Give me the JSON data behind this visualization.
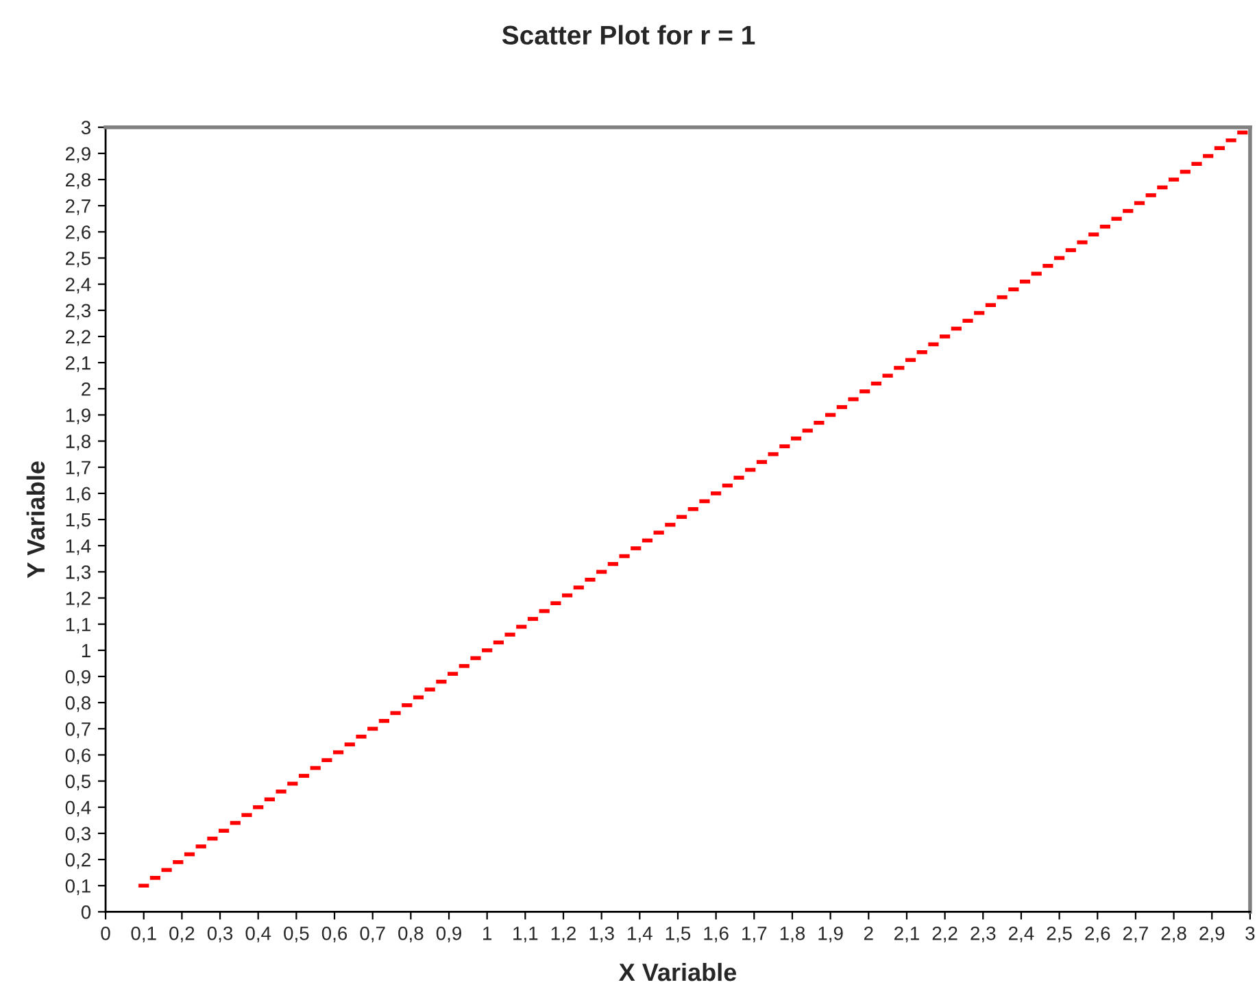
{
  "chart_data": {
    "type": "scatter",
    "title": "Scatter Plot for r = 1",
    "xlabel": "X Variable",
    "ylabel": "Y Variable",
    "x": [
      0.1,
      0.13,
      0.16,
      0.19,
      0.22,
      0.25,
      0.28,
      0.31,
      0.34,
      0.37,
      0.4,
      0.43,
      0.46,
      0.49,
      0.52,
      0.55,
      0.58,
      0.61,
      0.64,
      0.67,
      0.7,
      0.73,
      0.76,
      0.79,
      0.82,
      0.85,
      0.88,
      0.91,
      0.94,
      0.97,
      1,
      1.03,
      1.06,
      1.09,
      1.12,
      1.15,
      1.18,
      1.21,
      1.24,
      1.27,
      1.3,
      1.33,
      1.36,
      1.39,
      1.42,
      1.45,
      1.48,
      1.51,
      1.54,
      1.57,
      1.6,
      1.63,
      1.66,
      1.69,
      1.72,
      1.75,
      1.78,
      1.81,
      1.84,
      1.87,
      1.9,
      1.93,
      1.96,
      1.99,
      2.02,
      2.05,
      2.08,
      2.11,
      2.14,
      2.17,
      2.2,
      2.23,
      2.26,
      2.29,
      2.32,
      2.35,
      2.38,
      2.41,
      2.44,
      2.47,
      2.5,
      2.53,
      2.56,
      2.59,
      2.62,
      2.65,
      2.68,
      2.71,
      2.74,
      2.77,
      2.8,
      2.83,
      2.86,
      2.89,
      2.92,
      2.95,
      2.98
    ],
    "series": [
      {
        "color": "#ff0000",
        "values": [
          0.1,
          0.13,
          0.16,
          0.19,
          0.22,
          0.25,
          0.28,
          0.31,
          0.34,
          0.37,
          0.4,
          0.43,
          0.46,
          0.49,
          0.52,
          0.55,
          0.58,
          0.61,
          0.64,
          0.67,
          0.7,
          0.73,
          0.76,
          0.79,
          0.82,
          0.85,
          0.88,
          0.91,
          0.94,
          0.97,
          1,
          1.03,
          1.06,
          1.09,
          1.12,
          1.15,
          1.18,
          1.21,
          1.24,
          1.27,
          1.3,
          1.33,
          1.36,
          1.39,
          1.42,
          1.45,
          1.48,
          1.51,
          1.54,
          1.57,
          1.6,
          1.63,
          1.66,
          1.69,
          1.72,
          1.75,
          1.78,
          1.81,
          1.84,
          1.87,
          1.9,
          1.93,
          1.96,
          1.99,
          2.02,
          2.05,
          2.08,
          2.11,
          2.14,
          2.17,
          2.2,
          2.23,
          2.26,
          2.29,
          2.32,
          2.35,
          2.38,
          2.41,
          2.44,
          2.47,
          2.5,
          2.53,
          2.56,
          2.59,
          2.62,
          2.65,
          2.68,
          2.71,
          2.74,
          2.77,
          2.8,
          2.83,
          2.86,
          2.89,
          2.92,
          2.95,
          2.98
        ]
      }
    ],
    "xlim": [
      0,
      3
    ],
    "ylim": [
      0,
      3
    ],
    "xticks": [
      0,
      {
        "value": 0.1,
        "label": "0,1"
      },
      {
        "value": 0.2,
        "label": "0,2"
      },
      {
        "value": 0.3,
        "label": "0,3"
      },
      {
        "value": 0.4,
        "label": "0,4"
      },
      {
        "value": 0.5,
        "label": "0,5"
      },
      {
        "value": 0.6,
        "label": "0,6"
      },
      {
        "value": 0.7,
        "label": "0,7"
      },
      {
        "value": 0.8,
        "label": "0,8"
      },
      {
        "value": 0.9,
        "label": "0,9"
      },
      1,
      {
        "value": 1.1,
        "label": "1,1"
      },
      {
        "value": 1.2,
        "label": "1,2"
      },
      {
        "value": 1.3,
        "label": "1,3"
      },
      {
        "value": 1.4,
        "label": "1,4"
      },
      {
        "value": 1.5,
        "label": "1,5"
      },
      {
        "value": 1.6,
        "label": "1,6"
      },
      {
        "value": 1.7,
        "label": "1,7"
      },
      {
        "value": 1.8,
        "label": "1,8"
      },
      {
        "value": 1.9,
        "label": "1,9"
      },
      2,
      {
        "value": 2.1,
        "label": "2,1"
      },
      {
        "value": 2.2,
        "label": "2,2"
      },
      {
        "value": 2.3,
        "label": "2,3"
      },
      {
        "value": 2.4,
        "label": "2,4"
      },
      {
        "value": 2.5,
        "label": "2,5"
      },
      {
        "value": 2.6,
        "label": "2,6"
      },
      {
        "value": 2.7,
        "label": "2,7"
      },
      {
        "value": 2.8,
        "label": "2,8"
      },
      {
        "value": 2.9,
        "label": "2,9"
      },
      3
    ],
    "yticks": [
      0,
      {
        "value": 0.1,
        "label": "0,1"
      },
      {
        "value": 0.2,
        "label": "0,2"
      },
      {
        "value": 0.3,
        "label": "0,3"
      },
      {
        "value": 0.4,
        "label": "0,4"
      },
      {
        "value": 0.5,
        "label": "0,5"
      },
      {
        "value": 0.6,
        "label": "0,6"
      },
      {
        "value": 0.7,
        "label": "0,7"
      },
      {
        "value": 0.8,
        "label": "0,8"
      },
      {
        "value": 0.9,
        "label": "0,9"
      },
      1,
      {
        "value": 1.1,
        "label": "1,1"
      },
      {
        "value": 1.2,
        "label": "1,2"
      },
      {
        "value": 1.3,
        "label": "1,3"
      },
      {
        "value": 1.4,
        "label": "1,4"
      },
      {
        "value": 1.5,
        "label": "1,5"
      },
      {
        "value": 1.6,
        "label": "1,6"
      },
      {
        "value": 1.7,
        "label": "1,7"
      },
      {
        "value": 1.8,
        "label": "1,8"
      },
      {
        "value": 1.9,
        "label": "1,9"
      },
      2,
      {
        "value": 2.1,
        "label": "2,1"
      },
      {
        "value": 2.2,
        "label": "2,2"
      },
      {
        "value": 2.3,
        "label": "2,3"
      },
      {
        "value": 2.4,
        "label": "2,4"
      },
      {
        "value": 2.5,
        "label": "2,5"
      },
      {
        "value": 2.6,
        "label": "2,6"
      },
      {
        "value": 2.7,
        "label": "2,7"
      },
      {
        "value": 2.8,
        "label": "2,8"
      },
      {
        "value": 2.9,
        "label": "2,9"
      },
      3
    ],
    "marker": "square",
    "grid": false,
    "legend": false
  }
}
